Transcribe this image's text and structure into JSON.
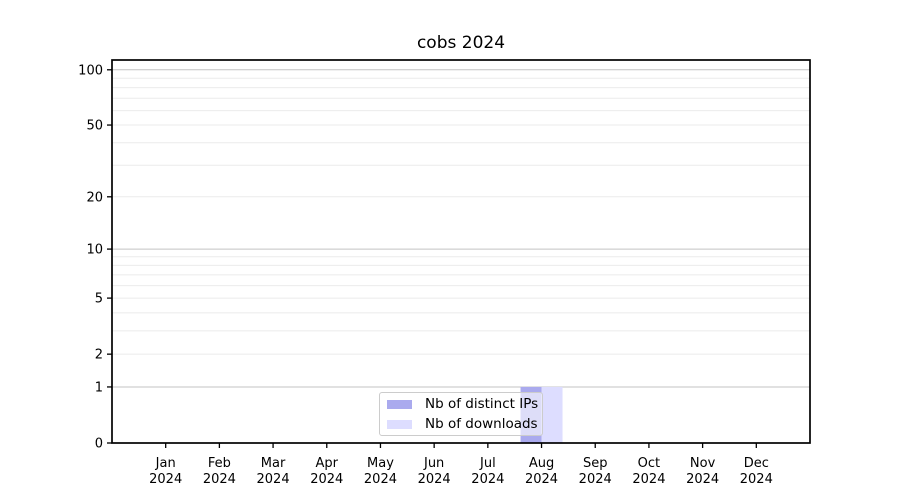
{
  "chart_data": {
    "type": "bar",
    "title": "cobs 2024",
    "categories": [
      "Jan 2024",
      "Feb 2024",
      "Mar 2024",
      "Apr 2024",
      "May 2024",
      "Jun 2024",
      "Jul 2024",
      "Aug 2024",
      "Sep 2024",
      "Oct 2024",
      "Nov 2024",
      "Dec 2024"
    ],
    "series": [
      {
        "name": "Nb of distinct IPs",
        "color": "#aaaaee",
        "values": [
          0,
          0,
          0,
          0,
          0,
          0,
          0,
          1,
          0,
          0,
          0,
          0
        ]
      },
      {
        "name": "Nb of downloads",
        "color": "#ddddff",
        "values": [
          0,
          0,
          0,
          0,
          0,
          0,
          0,
          1,
          0,
          0,
          0,
          0
        ]
      }
    ],
    "yscale": "log1p",
    "ylim": [
      0,
      113
    ],
    "yticks": [
      0,
      1,
      2,
      5,
      10,
      20,
      50,
      100
    ],
    "grid_minor_values": [
      2,
      3,
      4,
      5,
      6,
      7,
      8,
      9,
      20,
      30,
      40,
      50,
      60,
      70,
      80,
      90
    ],
    "grid_major_values": [
      1,
      10,
      100
    ],
    "grid_minor_color": "#ebebeb",
    "grid_major_color": "#c3c3c3",
    "axis_color": "#000000",
    "legend_position": "lower center",
    "xlabel": "",
    "ylabel": ""
  }
}
